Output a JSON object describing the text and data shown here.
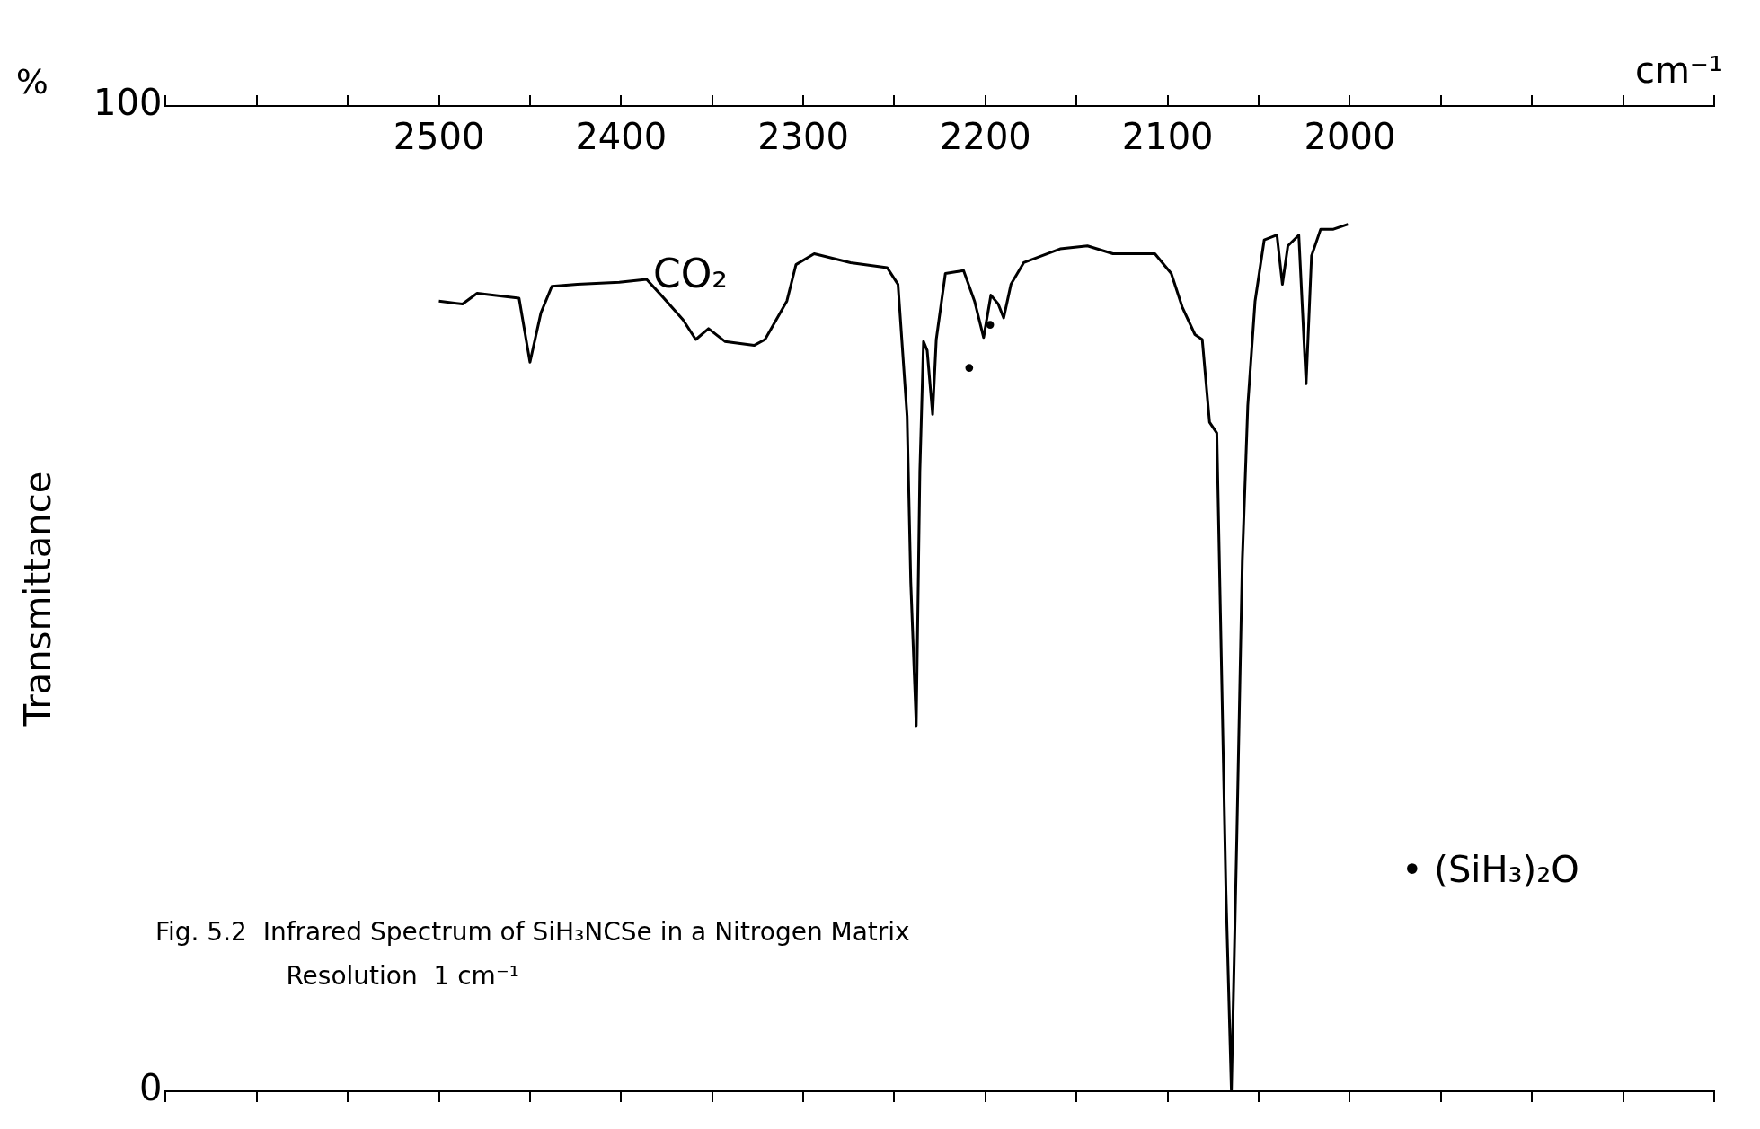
{
  "chart_data": {
    "type": "line",
    "xlabel": "cm⁻¹",
    "ylabel": "Transmittance",
    "x": [
      2500,
      2487,
      2479,
      2456,
      2450,
      2444,
      2438,
      2424,
      2401,
      2386,
      2378,
      2366,
      2359,
      2352,
      2343,
      2327,
      2321,
      2309,
      2304,
      2294,
      2274,
      2254,
      2248,
      2243,
      2241,
      2238,
      2236,
      2234,
      2232,
      2229,
      2227,
      2222,
      2212,
      2206,
      2201,
      2197,
      2193,
      2190,
      2186,
      2179,
      2159,
      2144,
      2130,
      2107,
      2098,
      2092,
      2085,
      2081,
      2077,
      2073,
      2071,
      2068,
      2065,
      2062,
      2059,
      2056,
      2052,
      2047,
      2040,
      2037,
      2034,
      2028,
      2024,
      2021,
      2016,
      2009,
      2001
    ],
    "series": [
      {
        "color": "#000000",
        "values": [
          80.2,
          79.9,
          81,
          80.5,
          74,
          79,
          81.7,
          81.9,
          82.1,
          82.4,
          80.8,
          78.3,
          76.3,
          77.4,
          76.1,
          75.7,
          76.3,
          80.2,
          83.9,
          85,
          84.1,
          83.6,
          81.9,
          68.5,
          51.7,
          37.1,
          62.9,
          76.1,
          75.2,
          68.7,
          76.3,
          83,
          83.3,
          80.2,
          76.5,
          80.8,
          79.9,
          78.5,
          81.9,
          84.1,
          85.5,
          85.8,
          85,
          85,
          83,
          79.6,
          76.8,
          76.3,
          67.9,
          66.8,
          48.3,
          20.4,
          0,
          26,
          53.9,
          69.6,
          80.2,
          86.4,
          86.9,
          81.9,
          85.8,
          86.9,
          71.8,
          84.8,
          87.5,
          87.5,
          88
        ]
      }
    ],
    "xlim": [
      2650,
      1800
    ],
    "xticks": [
      {
        "value": 2650,
        "label": null
      },
      {
        "value": 2600,
        "label": null
      },
      {
        "value": 2550,
        "label": null
      },
      2500,
      {
        "value": 2450,
        "label": null
      },
      2400,
      {
        "value": 2350,
        "label": null
      },
      2300,
      {
        "value": 2250,
        "label": null
      },
      2200,
      {
        "value": 2150,
        "label": null
      },
      2100,
      {
        "value": 2050,
        "label": null
      },
      2000,
      {
        "value": 1950,
        "label": null
      },
      {
        "value": 1900,
        "label": null
      },
      {
        "value": 1850,
        "label": null
      },
      {
        "value": 1800,
        "label": null
      }
    ],
    "ylim": [
      0,
      100
    ],
    "yticks": [
      0,
      100
    ],
    "grid": false,
    "legend": false,
    "marker": "none",
    "line_style": "solid",
    "annotations": [
      "CO₂",
      "•",
      "•",
      "%",
      "• (SiH₃)₂O",
      "Fig. 5.2  Infrared Spectrum of SiH₃NCSe in a Nitrogen Matrix",
      "Resolution  1 cm⁻¹"
    ]
  }
}
